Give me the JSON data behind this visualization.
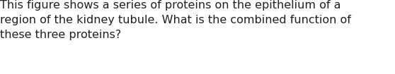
{
  "text": "This figure shows a series of proteins on the epithelium of a\nregion of the kidney tubule. What is the combined function of\nthese three proteins?",
  "background_color": "#ffffff",
  "text_color": "#231f20",
  "font_size": 11.5,
  "fig_width": 5.58,
  "fig_height": 1.05,
  "dpi": 100
}
